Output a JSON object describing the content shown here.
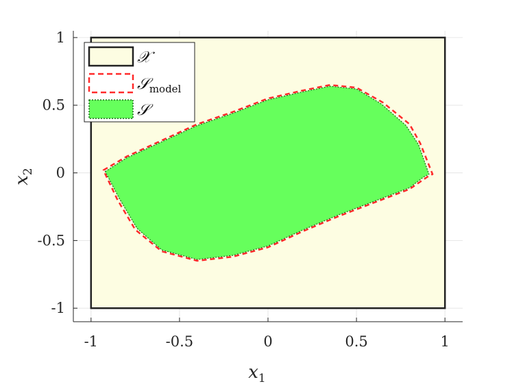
{
  "chart_data": {
    "type": "area",
    "xlabel": "x",
    "xlabel_sub": "1",
    "ylabel": "x",
    "ylabel_sub": "2",
    "xlim": [
      -1.1,
      1.1
    ],
    "ylim": [
      -1.1,
      1.05
    ],
    "xticks": [
      -1,
      -0.5,
      0,
      0.5,
      1
    ],
    "xtick_labels": [
      "-1",
      "-0.5",
      "0",
      "0.5",
      "1"
    ],
    "yticks": [
      -1,
      -0.5,
      0,
      0.5,
      1
    ],
    "ytick_labels": [
      "-1",
      "-0.5",
      "0",
      "0.5",
      "1"
    ],
    "grid": true,
    "legend_position": "top-left",
    "series": [
      {
        "name": "𝒳",
        "style": "box",
        "fill": "#fdfde2",
        "stroke": "#222222",
        "x": [
          -1,
          1,
          1,
          -1
        ],
        "y": [
          -1,
          -1,
          1,
          1
        ]
      },
      {
        "name": "𝒮",
        "name_sub": "model",
        "style": "dashed-outline",
        "stroke": "#ff2a2a",
        "x": [
          -0.93,
          -0.8,
          -0.6,
          -0.4,
          -0.2,
          0.0,
          0.2,
          0.35,
          0.5,
          0.65,
          0.8,
          0.86,
          0.93,
          0.9,
          0.8,
          0.6,
          0.4,
          0.2,
          0.0,
          -0.2,
          -0.4,
          -0.6,
          -0.75,
          -0.85,
          -0.93
        ],
        "y": [
          0.02,
          0.12,
          0.24,
          0.36,
          0.45,
          0.55,
          0.61,
          0.65,
          0.63,
          0.52,
          0.36,
          0.22,
          -0.01,
          -0.03,
          -0.12,
          -0.22,
          -0.32,
          -0.43,
          -0.55,
          -0.62,
          -0.65,
          -0.58,
          -0.42,
          -0.2,
          0.02
        ]
      },
      {
        "name": "𝒮",
        "style": "filled",
        "fill": "#66ff5c",
        "stroke": "#1a6b1a",
        "x": [
          -0.92,
          -0.8,
          -0.6,
          -0.4,
          -0.2,
          0.0,
          0.2,
          0.35,
          0.5,
          0.64,
          0.78,
          0.85,
          0.91,
          0.88,
          0.8,
          0.6,
          0.4,
          0.2,
          0.0,
          -0.2,
          -0.4,
          -0.6,
          -0.74,
          -0.84,
          -0.92
        ],
        "y": [
          0.01,
          0.11,
          0.23,
          0.35,
          0.44,
          0.54,
          0.6,
          0.64,
          0.62,
          0.51,
          0.35,
          0.21,
          -0.01,
          -0.03,
          -0.11,
          -0.21,
          -0.31,
          -0.42,
          -0.54,
          -0.61,
          -0.64,
          -0.57,
          -0.41,
          -0.19,
          0.01
        ]
      }
    ]
  }
}
